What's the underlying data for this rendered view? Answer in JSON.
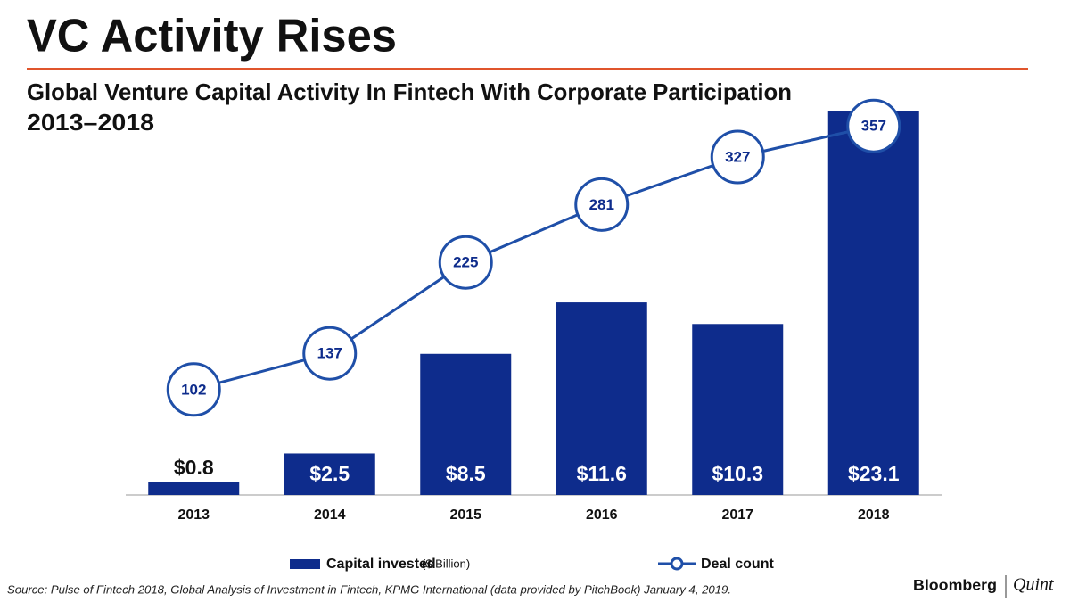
{
  "chart_data": {
    "type": "combo",
    "title": "VC Activity Rises",
    "subtitle": [
      "Global Venture Capital Activity In Fintech With Corporate Participation",
      "2013–2018"
    ],
    "categories": [
      "2013",
      "2014",
      "2015",
      "2016",
      "2017",
      "2018"
    ],
    "series": [
      {
        "name": "Capital invested",
        "unit": "($ Billion)",
        "type": "bar",
        "color": "#0e2c8c",
        "values": [
          0.8,
          2.5,
          8.5,
          11.6,
          10.3,
          23.1
        ],
        "value_labels": [
          "$0.8",
          "$2.5",
          "$8.5",
          "$11.6",
          "$10.3",
          "$23.1"
        ]
      },
      {
        "name": "Deal count",
        "type": "line",
        "axis": "y2",
        "color": "#1f4fa8",
        "values": [
          102,
          137,
          225,
          281,
          327,
          357
        ]
      }
    ],
    "ylim": [
      0,
      23.1
    ],
    "y2lim": [
      0,
      371
    ],
    "grid": false,
    "legend": "bottom",
    "title_rule_color": "#e0552c"
  },
  "source": "Source: Pulse of Fintech 2018, Global Analysis of Investment in Fintech, KPMG International (data provided by PitchBook) January 4, 2019.",
  "branding": [
    "Bloomberg",
    "Quint"
  ]
}
